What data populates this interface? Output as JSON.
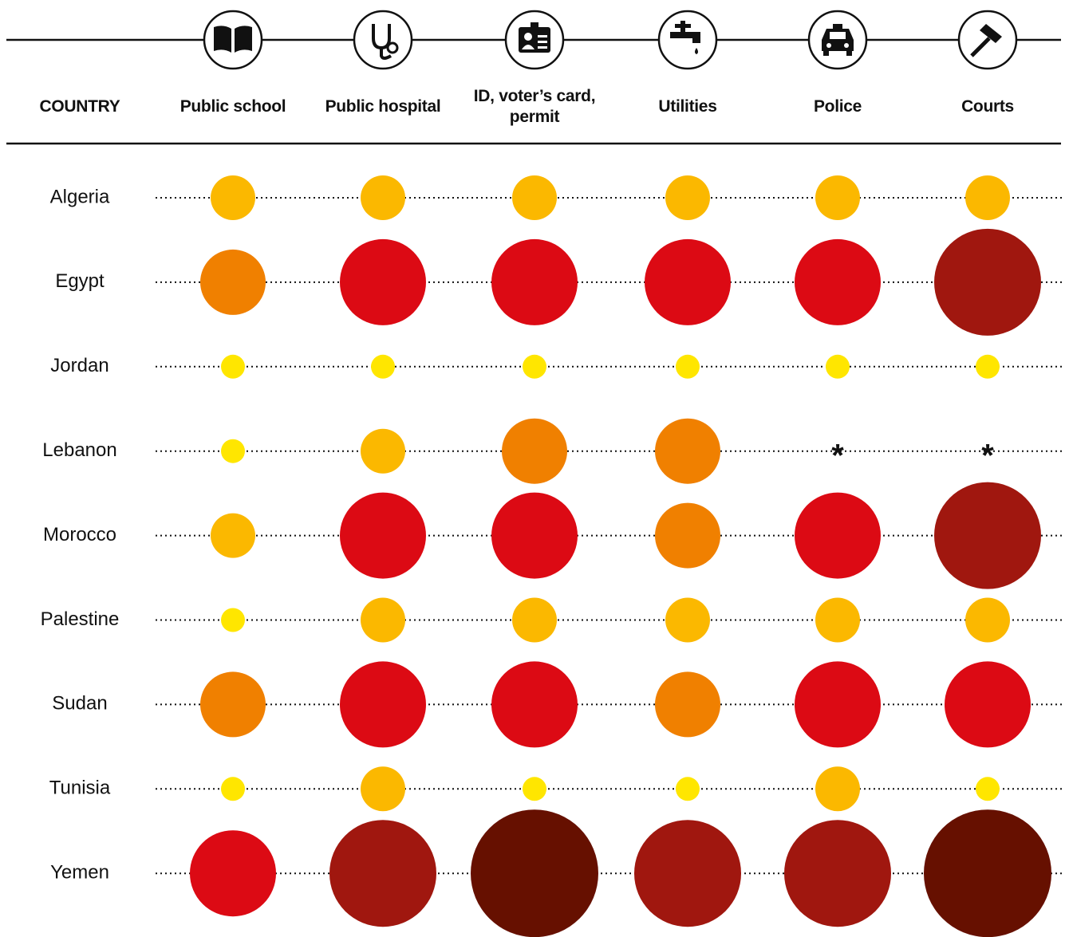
{
  "chart_data": {
    "type": "dot-matrix",
    "row_header": "COUNTRY",
    "categories": [
      "Algeria",
      "Egypt",
      "Jordan",
      "Lebanon",
      "Morocco",
      "Palestine",
      "Sudan",
      "Tunisia",
      "Yemen"
    ],
    "series": [
      {
        "name": "Public school",
        "values": [
          2,
          3,
          1,
          1,
          2,
          1,
          3,
          1,
          4
        ]
      },
      {
        "name": "Public hospital",
        "values": [
          2,
          4,
          1,
          2,
          4,
          2,
          4,
          2,
          5
        ]
      },
      {
        "name": "ID, voter’s card, permit",
        "values": [
          2,
          4,
          1,
          3,
          4,
          2,
          4,
          1,
          6
        ]
      },
      {
        "name": "Utilities",
        "values": [
          2,
          4,
          1,
          3,
          3,
          2,
          3,
          1,
          5
        ]
      },
      {
        "name": "Police",
        "values": [
          2,
          4,
          1,
          null,
          4,
          2,
          4,
          2,
          5
        ]
      },
      {
        "name": "Courts",
        "values": [
          2,
          5,
          1,
          null,
          5,
          2,
          4,
          1,
          6
        ]
      }
    ],
    "missing_label": "*",
    "level_colors": [
      "#ffe600",
      "#fbb800",
      "#f08000",
      "#dc0a14",
      "#a0170f",
      "#661000"
    ]
  }
}
